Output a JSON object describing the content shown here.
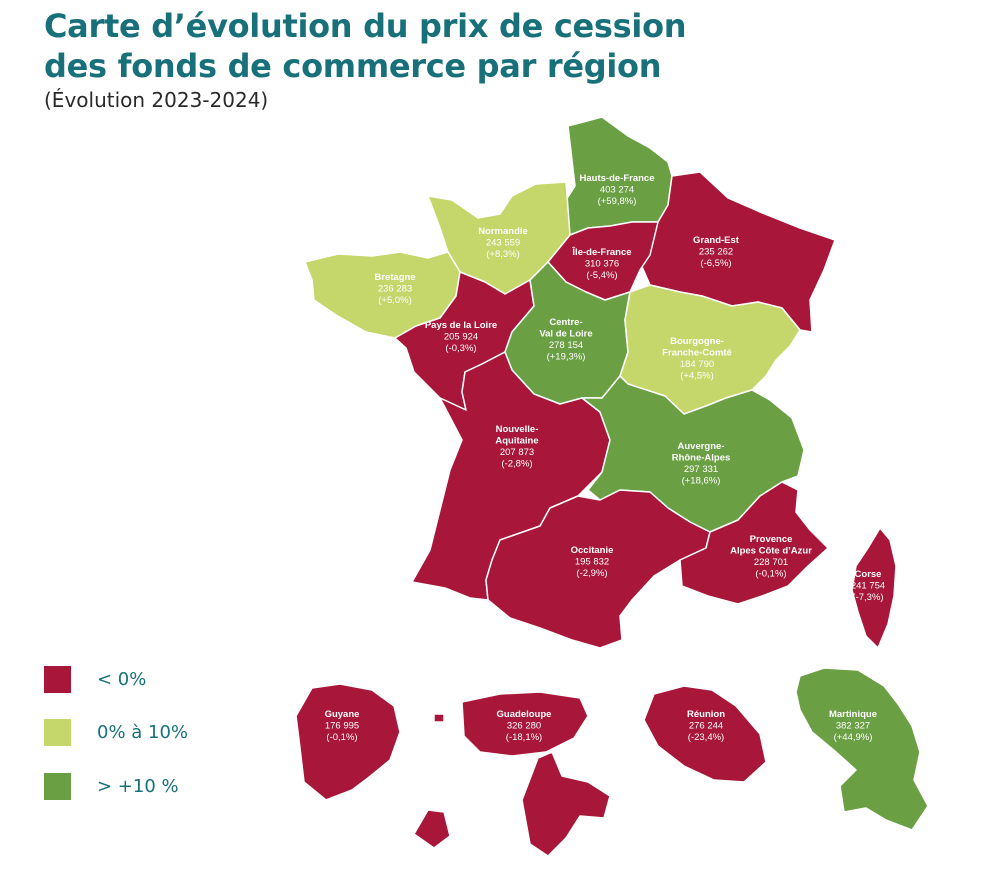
{
  "title_line1": "Carte d’évolution du prix de cession",
  "title_line2": "des fonds de commerce par région",
  "subtitle": "(Évolution  2023-2024)",
  "colors": {
    "negative": "#a8163a",
    "low": "#c5d66b",
    "high": "#6a9f43"
  },
  "legend": [
    {
      "label": "< 0%",
      "color": "#a8163a"
    },
    {
      "label": "0% à 10%",
      "color": "#c5d66b"
    },
    {
      "label": "> +10 %",
      "color": "#6a9f43"
    }
  ],
  "regions": [
    {
      "id": "hdf",
      "name": "Hauts-de-France",
      "price": "403 274",
      "change": "(+59,8%)",
      "category": "high"
    },
    {
      "id": "nor",
      "name": "Normandie",
      "price": "243 559",
      "change": "(+8,3%)",
      "category": "low"
    },
    {
      "id": "bre",
      "name": "Bretagne",
      "price": "236 283",
      "change": "(+5,0%)",
      "category": "low"
    },
    {
      "id": "idf",
      "name": "Île-de-France",
      "price": "310 376",
      "change": "(-5,4%)",
      "category": "negative"
    },
    {
      "id": "ges",
      "name": "Grand-Est",
      "price": "235 262",
      "change": "(-6,5%)",
      "category": "negative"
    },
    {
      "id": "pdl",
      "name": "Pays de la Loire",
      "price": "205 924",
      "change": "(-0,3%)",
      "category": "negative"
    },
    {
      "id": "cvl",
      "name_lines": [
        "Centre-",
        "Val de Loire"
      ],
      "price": "278 154",
      "change": "(+19,3%)",
      "category": "high"
    },
    {
      "id": "bfc",
      "name_lines": [
        "Bourgogne-",
        "Franche-Comté"
      ],
      "price": "184 790",
      "change": "(+4,5%)",
      "category": "low"
    },
    {
      "id": "naq",
      "name_lines": [
        "Nouvelle-",
        "Aquitaine"
      ],
      "price": "207 873",
      "change": "(-2,8%)",
      "category": "negative"
    },
    {
      "id": "ara",
      "name_lines": [
        "Auvergne-",
        "Rhône-Alpes"
      ],
      "price": "297 331",
      "change": "(+18,6%)",
      "category": "high"
    },
    {
      "id": "occ",
      "name": "Occitanie",
      "price": "195 832",
      "change": "(-2,9%)",
      "category": "negative"
    },
    {
      "id": "pac",
      "name_lines": [
        "Provence",
        "Alpes Côte d’Azur"
      ],
      "price": "228 701",
      "change": "(-0,1%)",
      "category": "negative"
    },
    {
      "id": "cor",
      "name": "Corse",
      "price": "241 754",
      "change": "(-7,3%)",
      "category": "negative"
    },
    {
      "id": "guy",
      "name": "Guyane",
      "price": "176 995",
      "change": "(-0,1%)",
      "category": "negative"
    },
    {
      "id": "gua",
      "name": "Guadeloupe",
      "price": "326 280",
      "change": "(-18,1%)",
      "category": "negative"
    },
    {
      "id": "reu",
      "name": "Réunion",
      "price": "276 244",
      "change": "(-23,4%)",
      "category": "negative"
    },
    {
      "id": "mar",
      "name": "Martinique",
      "price": "382 327",
      "change": "(+44,9%)",
      "category": "high"
    }
  ]
}
